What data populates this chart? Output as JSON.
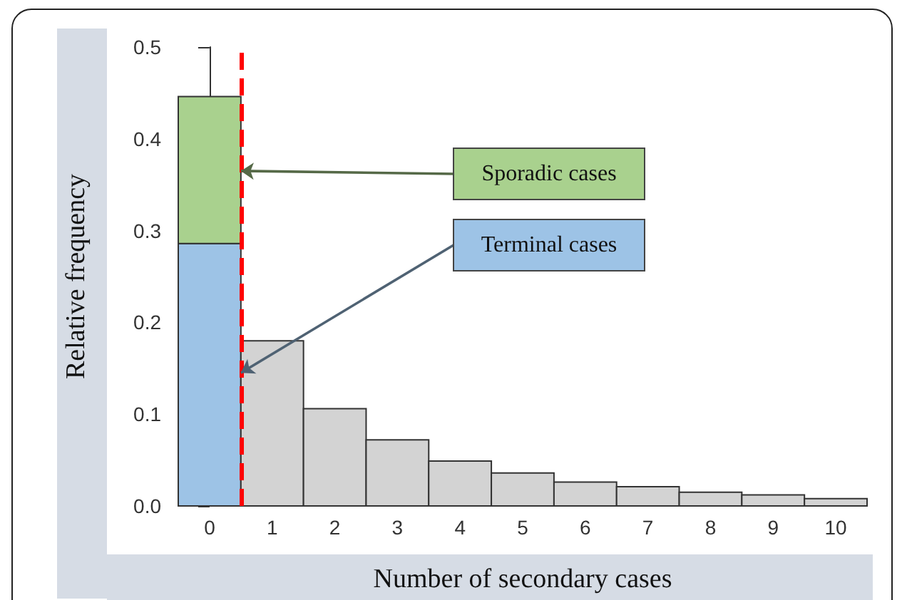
{
  "chart_data": {
    "type": "bar",
    "xlabel": "Number of secondary cases",
    "ylabel": "Relative frequency",
    "x": [
      0,
      1,
      2,
      3,
      4,
      5,
      6,
      7,
      8,
      9,
      10
    ],
    "series": [
      {
        "color": "#9dc3e6",
        "values": [
          0.286,
          null,
          null,
          null,
          null,
          null,
          null,
          null,
          null,
          null,
          null
        ]
      },
      {
        "color": "#a9d18e",
        "values": [
          0.16,
          null,
          null,
          null,
          null,
          null,
          null,
          null,
          null,
          null,
          null
        ]
      },
      {
        "color": "#d3d3d3",
        "values": [
          null,
          0.18,
          0.106,
          0.072,
          0.049,
          0.036,
          0.026,
          0.021,
          0.015,
          0.012,
          0.008
        ]
      }
    ],
    "stacked": true,
    "xlim": [
      -0.5,
      10.5
    ],
    "xticks": [
      0,
      1,
      2,
      3,
      4,
      5,
      6,
      7,
      8,
      9,
      10
    ],
    "ylim": [
      0,
      0.5
    ],
    "yticks": [
      {
        "value": 0,
        "label": "0.0"
      },
      0.1,
      0.2,
      0.3,
      0.4,
      0.5
    ],
    "ref_lines": [
      {
        "axis": "x",
        "value": 0.5,
        "color": "#ff0000",
        "line_style": "dashed"
      }
    ],
    "annotations": [
      {
        "text": "Sporadic cases",
        "x": 0.5,
        "y": 0.365
      },
      {
        "text": "Terminal cases",
        "x": 0.5,
        "y": 0.145
      }
    ],
    "grid": false
  }
}
